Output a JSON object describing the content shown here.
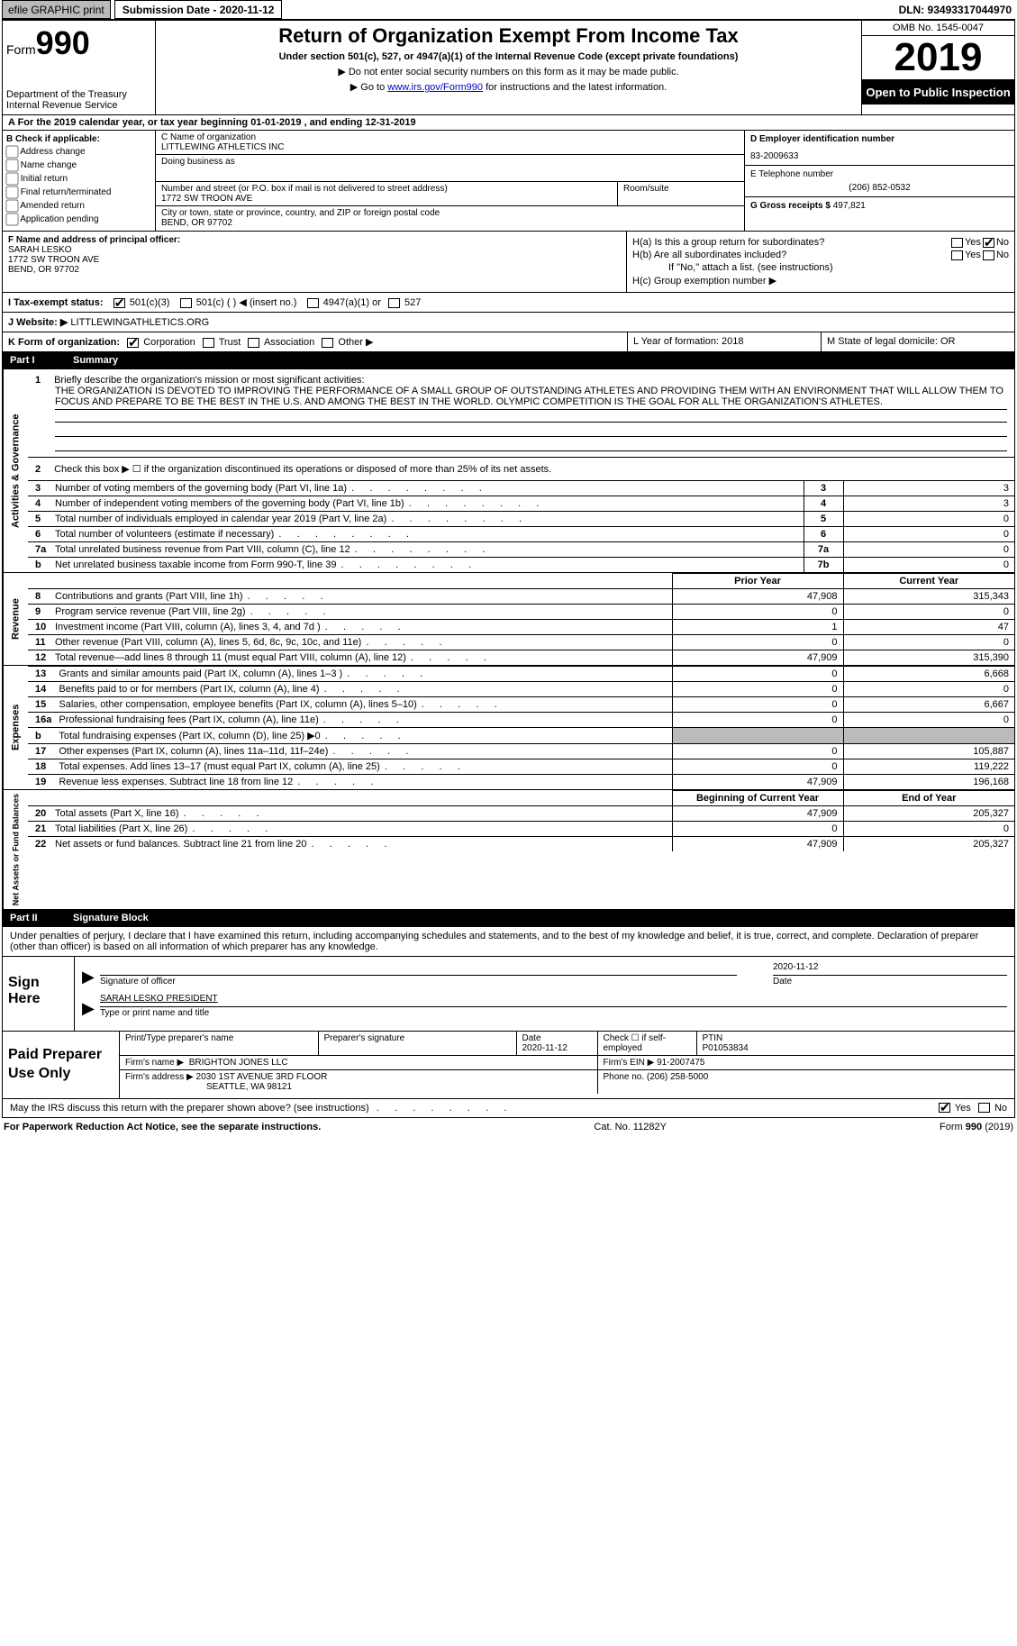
{
  "topbar": {
    "efile": "efile GRAPHIC print",
    "subdate_label": "Submission Date - 2020-11-12",
    "dln": "DLN: 93493317044970"
  },
  "header": {
    "form_label": "Form",
    "form_no": "990",
    "dept1": "Department of the Treasury",
    "dept2": "Internal Revenue Service",
    "title": "Return of Organization Exempt From Income Tax",
    "sub1": "Under section 501(c), 527, or 4947(a)(1) of the Internal Revenue Code (except private foundations)",
    "sub2": "▶ Do not enter social security numbers on this form as it may be made public.",
    "sub3_pre": "▶ Go to ",
    "sub3_link": "www.irs.gov/Form990",
    "sub3_post": " for instructions and the latest information.",
    "omb": "OMB No. 1545-0047",
    "year": "2019",
    "open": "Open to Public Inspection"
  },
  "period": {
    "text": "A   For the 2019 calendar year, or tax year beginning 01-01-2019    , and ending 12-31-2019"
  },
  "boxB": {
    "title": "B Check if applicable:",
    "opts": [
      "Address change",
      "Name change",
      "Initial return",
      "Final return/terminated",
      "Amended return",
      "Application pending"
    ]
  },
  "boxC": {
    "c_label": "C Name of organization",
    "org": "LITTLEWING ATHLETICS INC",
    "dba_label": "Doing business as",
    "addr_label": "Number and street (or P.O. box if mail is not delivered to street address)",
    "room_label": "Room/suite",
    "addr": "1772 SW TROON AVE",
    "city_label": "City or town, state or province, country, and ZIP or foreign postal code",
    "city": "BEND, OR  97702"
  },
  "boxD": {
    "label": "D Employer identification number",
    "ein": "83-2009633",
    "e_label": "E Telephone number",
    "phone": "(206) 852-0532",
    "g_label": "G Gross receipts $ ",
    "gross": "497,821"
  },
  "boxF": {
    "label": "F  Name and address of principal officer:",
    "name": "SARAH LESKO",
    "addr1": "1772 SW TROON AVE",
    "addr2": "BEND, OR  97702"
  },
  "boxH": {
    "ha_label": "H(a)  Is this a group return for subordinates?",
    "hb_label": "H(b)  Are all subordinates included?",
    "hb_note": "If \"No,\" attach a list. (see instructions)",
    "hc_label": "H(c)  Group exemption number ▶",
    "yes": "Yes",
    "no": "No"
  },
  "rowI": {
    "label": "I    Tax-exempt status:",
    "o1": "501(c)(3)",
    "o2": "501(c) (  ) ◀ (insert no.)",
    "o3": "4947(a)(1) or",
    "o4": "527"
  },
  "rowJ": {
    "label": "J   Website: ▶",
    "site": "  LITTLEWINGATHLETICS.ORG"
  },
  "rowK": {
    "label": "K Form of organization:",
    "corp": "Corporation",
    "trust": "Trust",
    "assoc": "Association",
    "other": "Other ▶"
  },
  "rowL": {
    "label": "L Year of formation: 2018"
  },
  "rowM": {
    "label": "M State of legal domicile: OR"
  },
  "part1": {
    "part": "Part I",
    "title": "Summary",
    "tab1": "Activities & Governance",
    "tab2": "Revenue",
    "tab3": "Expenses",
    "tab4": "Net Assets or Fund Balances",
    "l1_label": "Briefly describe the organization's mission or most significant activities:",
    "mission": "THE ORGANIZATION IS DEVOTED TO IMPROVING THE PERFORMANCE OF A SMALL GROUP OF OUTSTANDING ATHLETES AND PROVIDING THEM WITH AN ENVIRONMENT THAT WILL ALLOW THEM TO FOCUS AND PREPARE TO BE THE BEST IN THE U.S. AND AMONG THE BEST IN THE WORLD. OLYMPIC COMPETITION IS THE GOAL FOR ALL THE ORGANIZATION'S ATHLETES.",
    "l2": "Check this box ▶ ☐  if the organization discontinued its operations or disposed of more than 25% of its net assets.",
    "lines_3_7": [
      {
        "n": "3",
        "desc": "Number of voting members of the governing body (Part VI, line 1a)",
        "box": "3",
        "val": "3"
      },
      {
        "n": "4",
        "desc": "Number of independent voting members of the governing body (Part VI, line 1b)",
        "box": "4",
        "val": "3"
      },
      {
        "n": "5",
        "desc": "Total number of individuals employed in calendar year 2019 (Part V, line 2a)",
        "box": "5",
        "val": "0"
      },
      {
        "n": "6",
        "desc": "Total number of volunteers (estimate if necessary)",
        "box": "6",
        "val": "0"
      },
      {
        "n": "7a",
        "desc": "Total unrelated business revenue from Part VIII, column (C), line 12",
        "box": "7a",
        "val": "0"
      },
      {
        "n": "b",
        "desc": "Net unrelated business taxable income from Form 990-T, line 39",
        "box": "7b",
        "val": "0"
      }
    ],
    "col_headers": {
      "prior": "Prior Year",
      "current": "Current Year",
      "boy": "Beginning of Current Year",
      "eoy": "End of Year"
    },
    "revenue": [
      {
        "n": "8",
        "desc": "Contributions and grants (Part VIII, line 1h)",
        "p": "47,908",
        "c": "315,343"
      },
      {
        "n": "9",
        "desc": "Program service revenue (Part VIII, line 2g)",
        "p": "0",
        "c": "0"
      },
      {
        "n": "10",
        "desc": "Investment income (Part VIII, column (A), lines 3, 4, and 7d )",
        "p": "1",
        "c": "47"
      },
      {
        "n": "11",
        "desc": "Other revenue (Part VIII, column (A), lines 5, 6d, 8c, 9c, 10c, and 11e)",
        "p": "0",
        "c": "0"
      },
      {
        "n": "12",
        "desc": "Total revenue—add lines 8 through 11 (must equal Part VIII, column (A), line 12)",
        "p": "47,909",
        "c": "315,390"
      }
    ],
    "expenses": [
      {
        "n": "13",
        "desc": "Grants and similar amounts paid (Part IX, column (A), lines 1–3 )",
        "p": "0",
        "c": "6,668"
      },
      {
        "n": "14",
        "desc": "Benefits paid to or for members (Part IX, column (A), line 4)",
        "p": "0",
        "c": "0"
      },
      {
        "n": "15",
        "desc": "Salaries, other compensation, employee benefits (Part IX, column (A), lines 5–10)",
        "p": "0",
        "c": "6,667"
      },
      {
        "n": "16a",
        "desc": "Professional fundraising fees (Part IX, column (A), line 11e)",
        "p": "0",
        "c": "0"
      },
      {
        "n": "b",
        "desc": "Total fundraising expenses (Part IX, column (D), line 25) ▶0",
        "p": "",
        "c": "",
        "shaded": true
      },
      {
        "n": "17",
        "desc": "Other expenses (Part IX, column (A), lines 11a–11d, 11f–24e)",
        "p": "0",
        "c": "105,887"
      },
      {
        "n": "18",
        "desc": "Total expenses. Add lines 13–17 (must equal Part IX, column (A), line 25)",
        "p": "0",
        "c": "119,222"
      },
      {
        "n": "19",
        "desc": "Revenue less expenses. Subtract line 18 from line 12",
        "p": "47,909",
        "c": "196,168"
      }
    ],
    "netassets": [
      {
        "n": "20",
        "desc": "Total assets (Part X, line 16)",
        "p": "47,909",
        "c": "205,327"
      },
      {
        "n": "21",
        "desc": "Total liabilities (Part X, line 26)",
        "p": "0",
        "c": "0"
      },
      {
        "n": "22",
        "desc": "Net assets or fund balances. Subtract line 21 from line 20",
        "p": "47,909",
        "c": "205,327"
      }
    ]
  },
  "part2": {
    "part": "Part II",
    "title": "Signature Block",
    "intro": "Under penalties of perjury, I declare that I have examined this return, including accompanying schedules and statements, and to the best of my knowledge and belief, it is true, correct, and complete. Declaration of preparer (other than officer) is based on all information of which preparer has any knowledge.",
    "sign_here": "Sign Here",
    "sig_officer": "Signature of officer",
    "sig_date_lbl": "Date",
    "sig_date": "2020-11-12",
    "officer_name": "SARAH LESKO  PRESIDENT",
    "type_name": "Type or print name and title",
    "paid_lbl": "Paid Preparer Use Only",
    "prep_name_lbl": "Print/Type preparer's name",
    "prep_sig_lbl": "Preparer's signature",
    "date_lbl": "Date",
    "date_val": "2020-11-12",
    "check_lbl": "Check ☐ if self-employed",
    "ptin_lbl": "PTIN",
    "ptin": "P01053834",
    "firm_name_lbl": "Firm's name    ▶",
    "firm_name": "BRIGHTON JONES LLC",
    "firm_ein_lbl": "Firm's EIN ▶",
    "firm_ein": "91-2007475",
    "firm_addr_lbl": "Firm's address ▶",
    "firm_addr1": "2030 1ST AVENUE 3RD FLOOR",
    "firm_addr2": "SEATTLE, WA  98121",
    "phone_lbl": "Phone no. ",
    "phone": "(206) 258-5000",
    "discuss": "May the IRS discuss this return with the preparer shown above? (see instructions)",
    "yes": "Yes",
    "no": "No"
  },
  "footer": {
    "left": "For Paperwork Reduction Act Notice, see the separate instructions.",
    "mid": "Cat. No. 11282Y",
    "right": "Form 990 (2019)"
  }
}
